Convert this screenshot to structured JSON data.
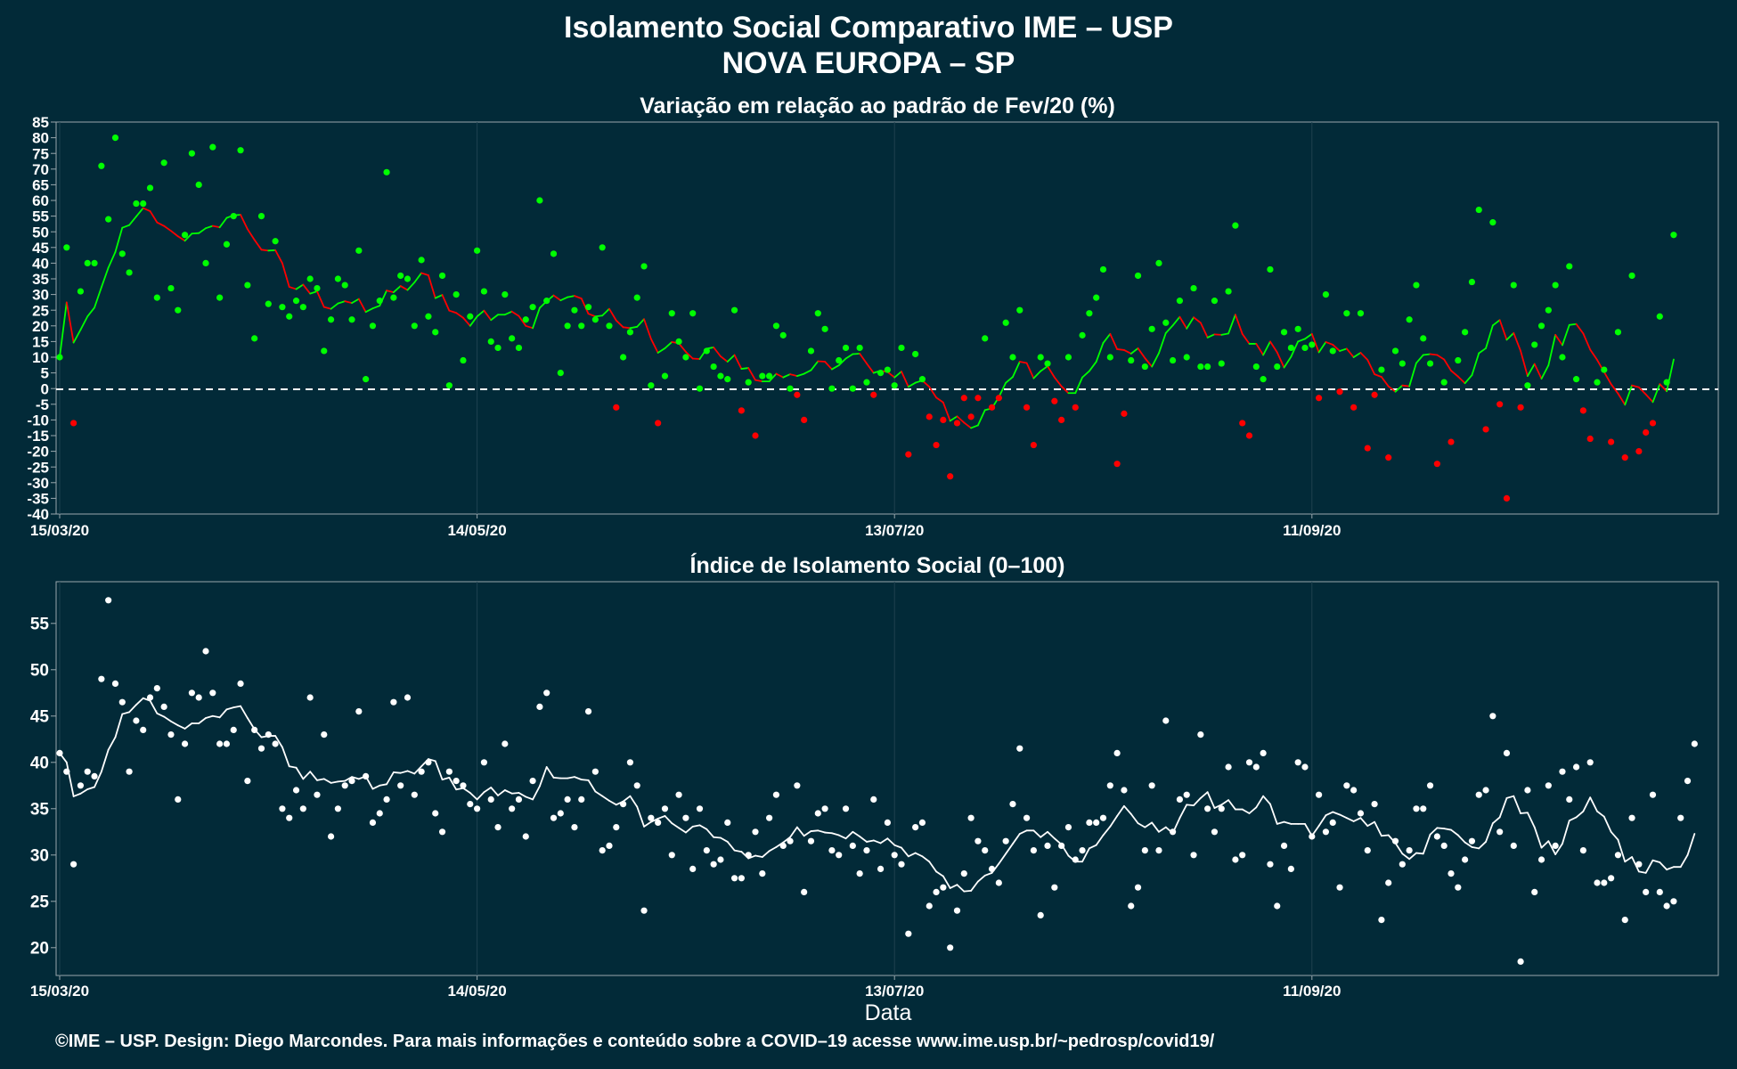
{
  "header": {
    "title_line1": "Isolamento Social Comparativo IME – USP",
    "title_line2": "NOVA EUROPA – SP"
  },
  "footer": {
    "text": "©IME – USP. Design: Diego Marcondes. Para mais informações e conteúdo sobre a COVID–19 acesse www.ime.usp.br/~pedrosp/covid19/"
  },
  "colors": {
    "background": "#022a38",
    "positive": "#00ff00",
    "negative": "#ff0000",
    "points_white": "#ffffff",
    "panel_border": "#9aa7ad",
    "grid": "#1e4250"
  },
  "chart_data": [
    {
      "type": "scatter",
      "title": "Variação em relação ao padrão de Fev/20 (%)",
      "xlabel": "",
      "ylabel": "",
      "x_start": "15/03/20",
      "x_end": "07/12/20",
      "x_tick_labels": [
        "15/03/20",
        "14/05/20",
        "13/07/20",
        "11/09/20"
      ],
      "x_tick_days": [
        0,
        60,
        120,
        180
      ],
      "ylim": [
        -40,
        85
      ],
      "y_ticks": [
        -40,
        -35,
        -30,
        -25,
        -20,
        -15,
        -10,
        -5,
        0,
        5,
        10,
        15,
        20,
        25,
        30,
        35,
        40,
        45,
        50,
        55,
        60,
        65,
        70,
        75,
        80,
        85
      ],
      "reference_line": 0,
      "point_color_rule": "green if value >= 0, red if value < 0",
      "series": [
        {
          "values": [
            10,
            45,
            -11,
            31,
            40,
            40,
            71,
            54,
            80,
            43,
            37,
            59,
            59,
            64,
            29,
            72,
            32,
            25,
            49,
            75,
            65,
            40,
            77,
            29,
            46,
            55,
            76,
            33,
            16,
            55,
            27,
            47,
            26,
            23,
            28,
            26,
            35,
            32,
            12,
            22,
            35,
            33,
            22,
            44,
            3,
            20,
            28,
            69,
            29,
            36,
            35,
            20,
            41,
            23,
            18,
            36,
            1,
            30,
            9,
            23,
            44,
            31,
            15,
            13,
            30,
            16,
            13,
            22,
            26,
            60,
            28,
            43,
            5,
            20,
            25,
            20,
            26,
            22,
            45,
            20,
            -6,
            10,
            18,
            29,
            39,
            1,
            -11,
            4,
            24,
            15,
            10,
            24,
            0,
            12,
            7,
            4,
            3,
            25,
            -7,
            2,
            -15,
            4,
            4,
            20,
            17,
            0,
            -2,
            -10,
            12,
            24,
            19,
            0,
            9,
            13,
            0,
            13,
            2,
            -2,
            5,
            6,
            1,
            13,
            -21,
            11,
            3,
            -9,
            -18,
            -10,
            -28,
            -11,
            -3,
            -9,
            -3,
            16,
            -6,
            -3,
            21,
            10,
            25,
            -6,
            -18,
            10,
            8,
            -4,
            -10,
            10,
            -6,
            17,
            24,
            29,
            38,
            10,
            -24,
            -8,
            9,
            36,
            7,
            19,
            40,
            21,
            9,
            28,
            10,
            32,
            7,
            7,
            28,
            8,
            31,
            52,
            -11,
            -15,
            7,
            3,
            38,
            7,
            18,
            13,
            19,
            13,
            14,
            -3,
            30,
            12,
            -1,
            24,
            -6,
            24,
            -19,
            -2,
            6,
            -22,
            12,
            8,
            22,
            33,
            16,
            8,
            -24,
            2,
            -17,
            9,
            18,
            34,
            57,
            -13,
            53,
            -5,
            -35,
            33,
            -6,
            1,
            14,
            20,
            25,
            33,
            10,
            39,
            3,
            -7,
            -16,
            2,
            6,
            -17,
            18,
            -22,
            36,
            -20,
            -14,
            -11,
            23,
            2,
            49
          ]
        }
      ]
    },
    {
      "type": "scatter",
      "title": "Índice de Isolamento Social (0–100)",
      "xlabel": "Data",
      "ylabel": "",
      "x_start": "15/03/20",
      "x_end": "07/12/20",
      "x_tick_labels": [
        "15/03/20",
        "14/05/20",
        "13/07/20",
        "11/09/20"
      ],
      "x_tick_days": [
        0,
        60,
        120,
        180
      ],
      "ylim": [
        17,
        59.5
      ],
      "y_ticks": [
        20,
        25,
        30,
        35,
        40,
        45,
        50,
        55
      ],
      "series": [
        {
          "values": [
            41,
            39,
            29,
            37.5,
            39,
            38.5,
            49,
            57.5,
            48.5,
            46.5,
            39,
            44.5,
            43.5,
            47,
            48,
            46,
            43,
            36,
            42,
            47.5,
            47,
            52,
            47.5,
            42,
            42,
            43.5,
            48.5,
            38,
            43.5,
            41.5,
            43,
            42,
            35,
            34,
            37,
            35,
            47,
            36.5,
            43,
            32,
            35,
            37.5,
            38,
            45.5,
            38.5,
            33.5,
            34.5,
            36,
            46.5,
            37.5,
            47,
            36.5,
            39,
            40,
            34.5,
            32.5,
            39,
            38,
            37.5,
            35.5,
            35,
            40,
            36,
            33,
            42,
            35,
            36,
            32,
            38,
            46,
            47.5,
            34,
            34.5,
            36,
            33,
            36,
            45.5,
            39,
            30.5,
            31,
            33,
            35.5,
            40,
            37.5,
            24,
            34,
            33.5,
            35,
            30,
            36.5,
            34,
            28.5,
            35,
            30.5,
            29,
            29.5,
            33.5,
            27.5,
            27.5,
            30,
            32.5,
            28,
            34,
            36.5,
            31,
            31.5,
            37.5,
            26,
            31.5,
            34.5,
            35,
            30.5,
            30,
            35,
            31,
            28,
            30.5,
            36,
            28.5,
            33.5,
            30,
            29,
            21.5,
            33,
            33.5,
            24.5,
            26,
            26.5,
            20,
            24,
            28,
            34,
            31.5,
            30.5,
            28.5,
            27,
            31.5,
            35.5,
            41.5,
            34,
            30.5,
            23.5,
            31,
            26.5,
            31,
            33,
            29.5,
            30.5,
            33.5,
            33.5,
            34,
            37.5,
            41,
            37,
            24.5,
            26.5,
            30.5,
            37.5,
            30.5,
            44.5,
            32.5,
            36,
            36.5,
            30,
            43,
            35,
            32.5,
            35,
            39.5,
            29.5,
            30,
            40,
            39.5,
            41,
            29,
            24.5,
            31,
            28.5,
            40,
            39.5,
            32,
            36.5,
            32.5,
            33.5,
            26.5,
            37.5,
            37,
            34.5,
            30.5,
            35.5,
            23,
            27,
            31.5,
            29,
            30.5,
            35,
            35,
            37.5,
            32,
            31,
            28,
            26.5,
            29.5,
            31.5,
            36.5,
            37,
            45,
            32.5,
            41,
            31,
            18.5,
            37,
            26,
            29.5,
            37.5,
            31,
            39,
            36,
            39.5,
            30.5,
            40,
            27,
            27,
            27.5,
            30,
            23,
            34,
            29,
            26,
            36.5,
            26,
            24.5,
            25,
            34,
            38,
            42
          ]
        }
      ]
    }
  ]
}
